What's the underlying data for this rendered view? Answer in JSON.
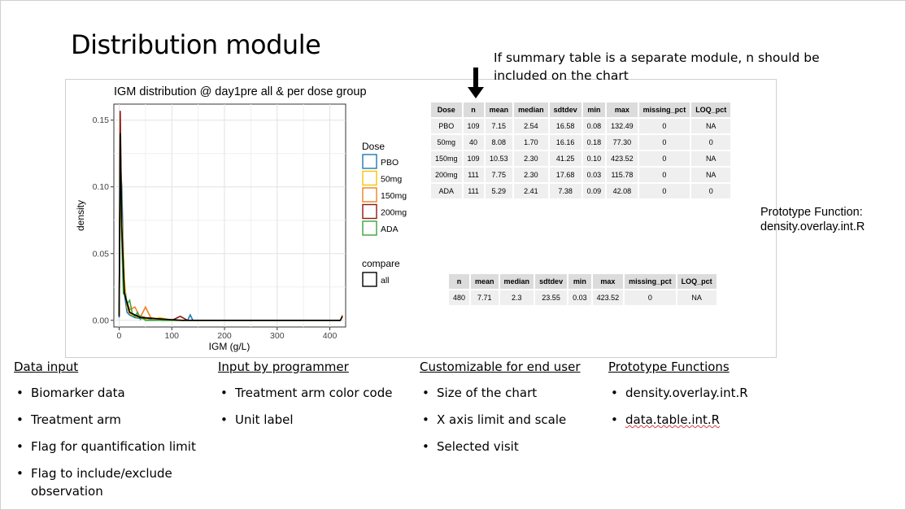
{
  "title": "Distribution module",
  "note": "If summary table is a separate module, n should be included on the chart",
  "prototype_note": {
    "line1": "Prototype Function:",
    "line2": "density.overlay.int.R"
  },
  "chart_data": {
    "type": "line",
    "title": "IGM distribution @ day1pre all & per dose group",
    "xlabel": "IGM  (g/L)",
    "ylabel": "density",
    "xlim": [
      -10,
      430
    ],
    "ylim": [
      -0.005,
      0.162
    ],
    "xticks": [
      0,
      100,
      200,
      300,
      400
    ],
    "yticks": [
      0.0,
      0.05,
      0.1,
      0.15
    ],
    "ytick_labels": [
      "0.00",
      "0.05",
      "0.10",
      "0.15"
    ],
    "grid": true,
    "legend": {
      "dose_title": "Dose",
      "dose_items": [
        {
          "name": "PBO",
          "color": "#1f77b4"
        },
        {
          "name": "50mg",
          "color": "#f5c400"
        },
        {
          "name": "150mg",
          "color": "#f08020"
        },
        {
          "name": "200mg",
          "color": "#8b1a10"
        },
        {
          "name": "ADA",
          "color": "#3aa33a"
        }
      ],
      "compare_title": "compare",
      "compare_items": [
        {
          "name": "all",
          "color": "#000000"
        }
      ]
    },
    "series": [
      {
        "name": "PBO",
        "color": "#1f77b4",
        "x": [
          0,
          2,
          5,
          10,
          15,
          20,
          30,
          50,
          80,
          100,
          130,
          135,
          140,
          200,
          420
        ],
        "y": [
          0.002,
          0.12,
          0.1,
          0.02,
          0.006,
          0.004,
          0.002,
          0.001,
          0.0,
          0.0,
          0.0,
          0.004,
          0.0,
          0.0,
          0.0
        ]
      },
      {
        "name": "50mg",
        "color": "#f5c400",
        "x": [
          0,
          2,
          5,
          10,
          15,
          20,
          30,
          40,
          50,
          60,
          77,
          100,
          420
        ],
        "y": [
          0.003,
          0.15,
          0.08,
          0.03,
          0.01,
          0.005,
          0.003,
          0.002,
          0.001,
          0.0,
          0.002,
          0.0,
          0.0
        ]
      },
      {
        "name": "150mg",
        "color": "#f08020",
        "x": [
          0,
          2,
          5,
          10,
          20,
          30,
          40,
          50,
          60,
          70,
          80,
          90,
          100,
          200,
          300,
          420,
          424
        ],
        "y": [
          0.003,
          0.11,
          0.06,
          0.02,
          0.008,
          0.01,
          0.002,
          0.01,
          0.002,
          0.001,
          0.0,
          0.0,
          0.0,
          0.0,
          0.0,
          0.0,
          0.004
        ]
      },
      {
        "name": "200mg",
        "color": "#8b1a10",
        "x": [
          0,
          2,
          5,
          10,
          20,
          30,
          50,
          80,
          100,
          116,
          130,
          420
        ],
        "y": [
          0.003,
          0.157,
          0.07,
          0.02,
          0.006,
          0.004,
          0.002,
          0.001,
          0.0,
          0.003,
          0.0,
          0.0
        ]
      },
      {
        "name": "ADA",
        "color": "#3aa33a",
        "x": [
          0,
          2,
          5,
          8,
          12,
          15,
          20,
          25,
          30,
          35,
          40,
          42,
          50,
          420
        ],
        "y": [
          0.003,
          0.133,
          0.06,
          0.02,
          0.02,
          0.012,
          0.015,
          0.005,
          0.003,
          0.006,
          0.001,
          0.003,
          0.0,
          0.0
        ]
      },
      {
        "name": "all",
        "color": "#000000",
        "x": [
          0,
          2,
          5,
          10,
          20,
          40,
          80,
          120,
          420,
          424
        ],
        "y": [
          0.003,
          0.14,
          0.07,
          0.02,
          0.006,
          0.002,
          0.001,
          0.0,
          0.0,
          0.003
        ]
      }
    ]
  },
  "dose_table": {
    "headers": [
      "Dose",
      "n",
      "mean",
      "median",
      "sdtdev",
      "min",
      "max",
      "missing_pct",
      "LOQ_pct"
    ],
    "rows": [
      [
        "PBO",
        "109",
        "7.15",
        "2.54",
        "16.58",
        "0.08",
        "132.49",
        "0",
        "NA"
      ],
      [
        "50mg",
        "40",
        "8.08",
        "1.70",
        "16.16",
        "0.18",
        "77.30",
        "0",
        "0"
      ],
      [
        "150mg",
        "109",
        "10.53",
        "2.30",
        "41.25",
        "0.10",
        "423.52",
        "0",
        "NA"
      ],
      [
        "200mg",
        "111",
        "7.75",
        "2.30",
        "17.68",
        "0.03",
        "115.78",
        "0",
        "NA"
      ],
      [
        "ADA",
        "111",
        "5.29",
        "2.41",
        "7.38",
        "0.09",
        "42.08",
        "0",
        "0"
      ]
    ]
  },
  "all_table": {
    "headers": [
      "n",
      "mean",
      "median",
      "sdtdev",
      "min",
      "max",
      "missing_pct",
      "LOQ_pct"
    ],
    "rows": [
      [
        "480",
        "7.71",
        "2.3",
        "23.55",
        "0.03",
        "423.52",
        "0",
        "NA"
      ]
    ]
  },
  "columns": [
    {
      "header": "Data input",
      "items": [
        "Biomarker data",
        "Treatment arm",
        "Flag for quantification limit",
        "Flag to include/exclude observation"
      ]
    },
    {
      "header": "Input by programmer",
      "items": [
        "Treatment arm color code",
        "Unit label"
      ]
    },
    {
      "header": "Customizable for end user",
      "items": [
        "Size of the chart",
        "X axis limit and scale",
        "Selected visit"
      ]
    },
    {
      "header": "Prototype Functions",
      "items": [
        "density.overlay.int.R",
        "data.table.int.R"
      ]
    }
  ]
}
